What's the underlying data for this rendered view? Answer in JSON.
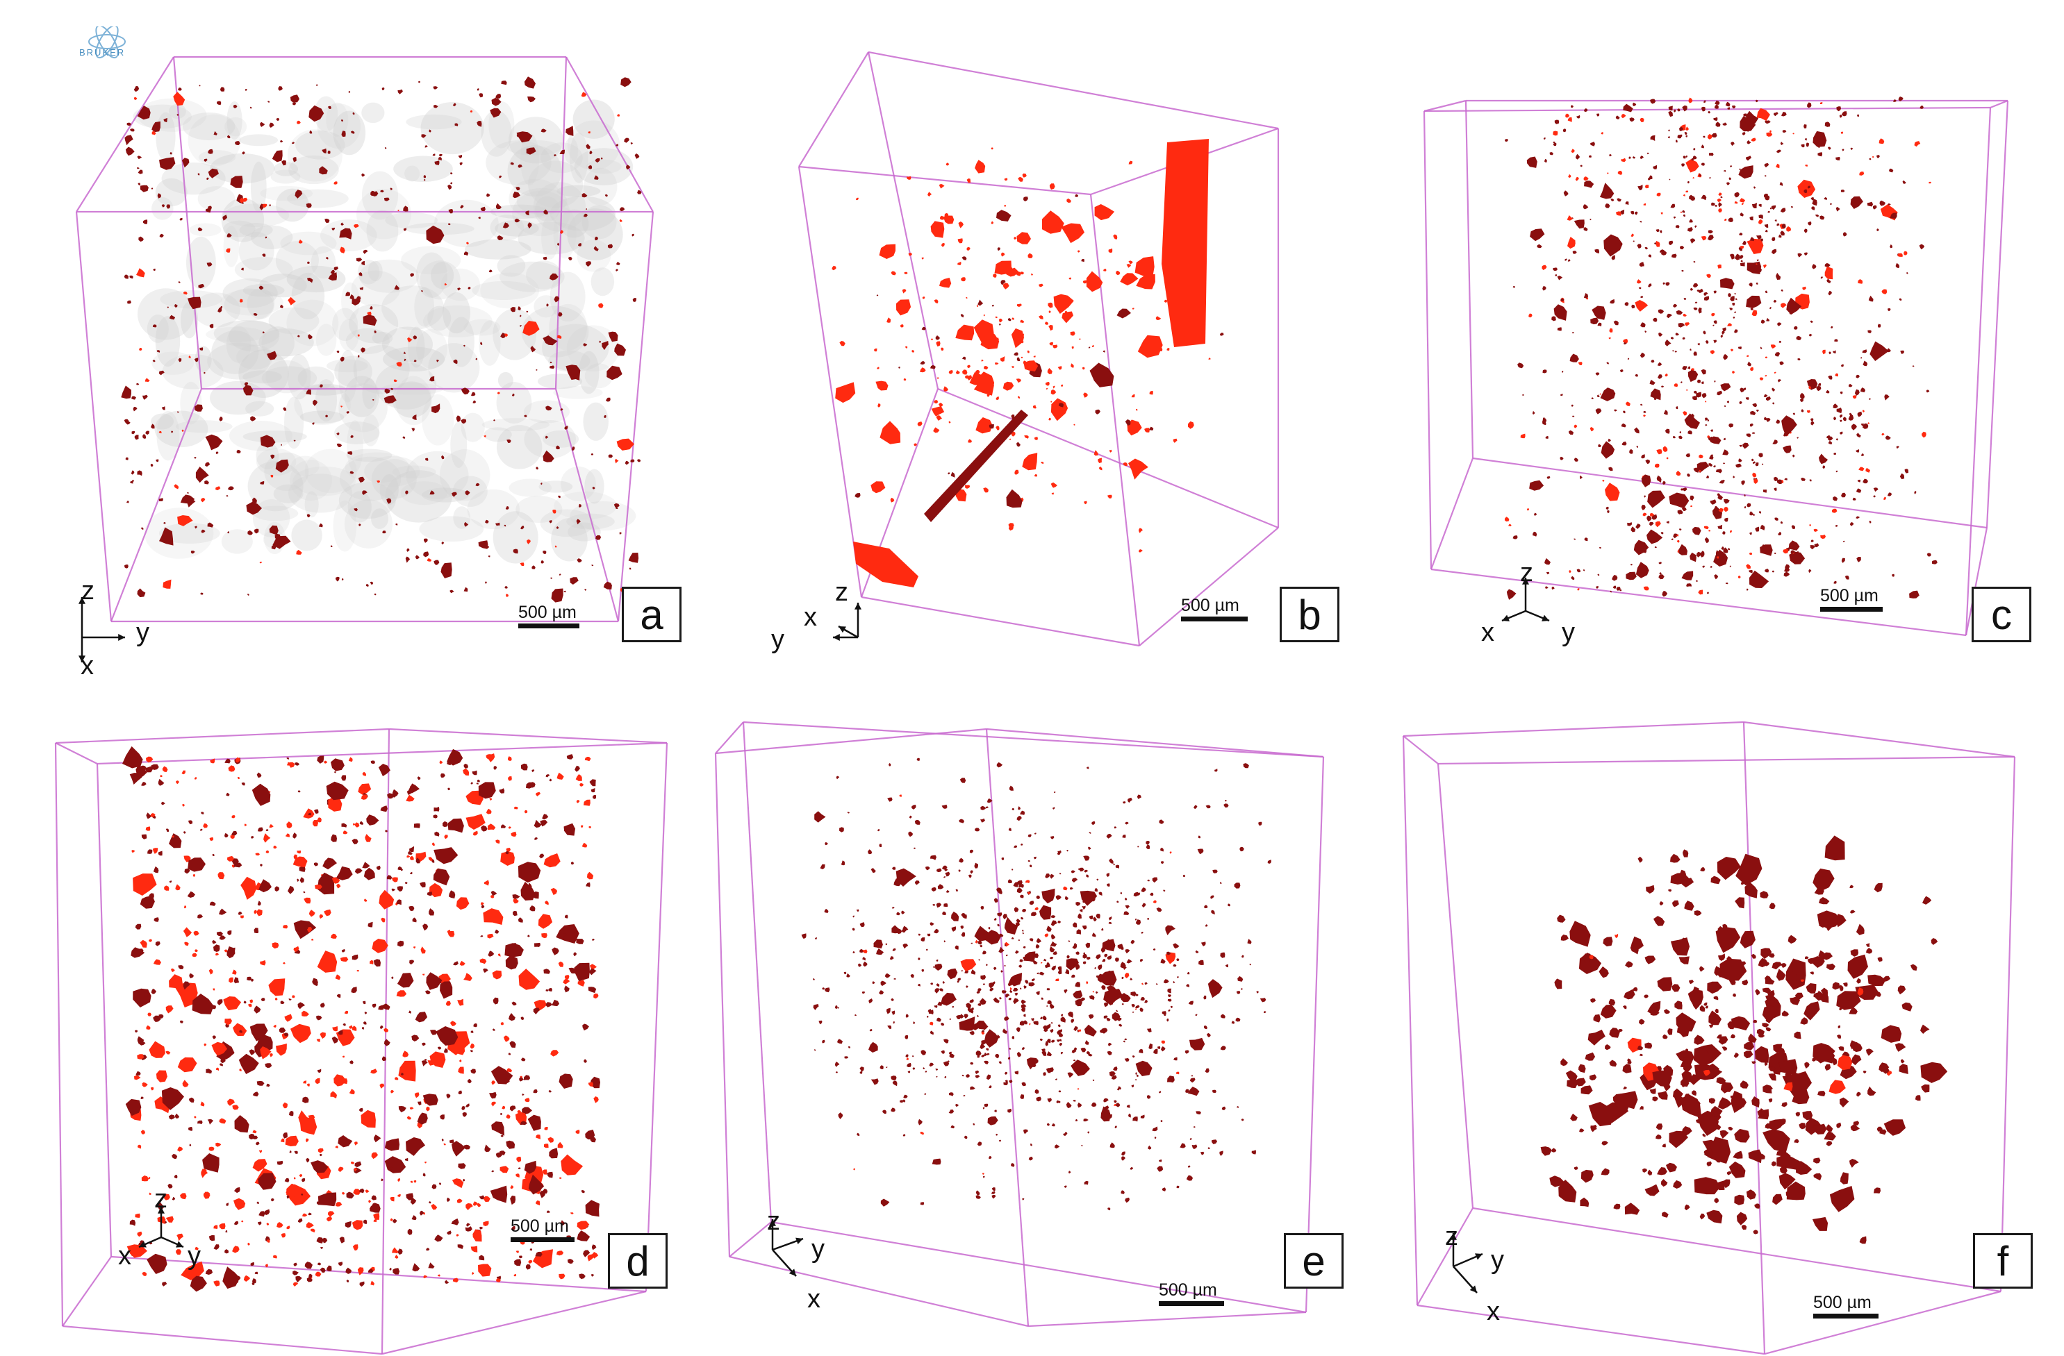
{
  "panels": [
    {
      "id": "a",
      "label": "a",
      "scale_text": "500 µm",
      "axes": {
        "up": "z",
        "right": "y",
        "down": "x"
      }
    },
    {
      "id": "b",
      "label": "b",
      "scale_text": "500 µm",
      "axes": {
        "up": "z",
        "left": "y",
        "upleft": "x"
      }
    },
    {
      "id": "c",
      "label": "c",
      "scale_text": "500 µm",
      "axes": {
        "up": "z",
        "left": "x",
        "right": "y"
      }
    },
    {
      "id": "d",
      "label": "d",
      "scale_text": "500 µm",
      "axes": {
        "up": "z",
        "left": "x",
        "right": "y"
      }
    },
    {
      "id": "e",
      "label": "e",
      "scale_text": "500 µm",
      "axes": {
        "up": "z",
        "right": "y",
        "down": "x"
      }
    },
    {
      "id": "f",
      "label": "f",
      "scale_text": "500 µm",
      "axes": {
        "up": "z",
        "right": "y",
        "down": "x"
      }
    }
  ],
  "logo": {
    "text": "BRUKER"
  },
  "colors": {
    "frame": "#c86ad0",
    "pore_bright": "#ff2a10",
    "pore_dark": "#8a0f0f",
    "matrix_gray": "#cfcfcf"
  }
}
